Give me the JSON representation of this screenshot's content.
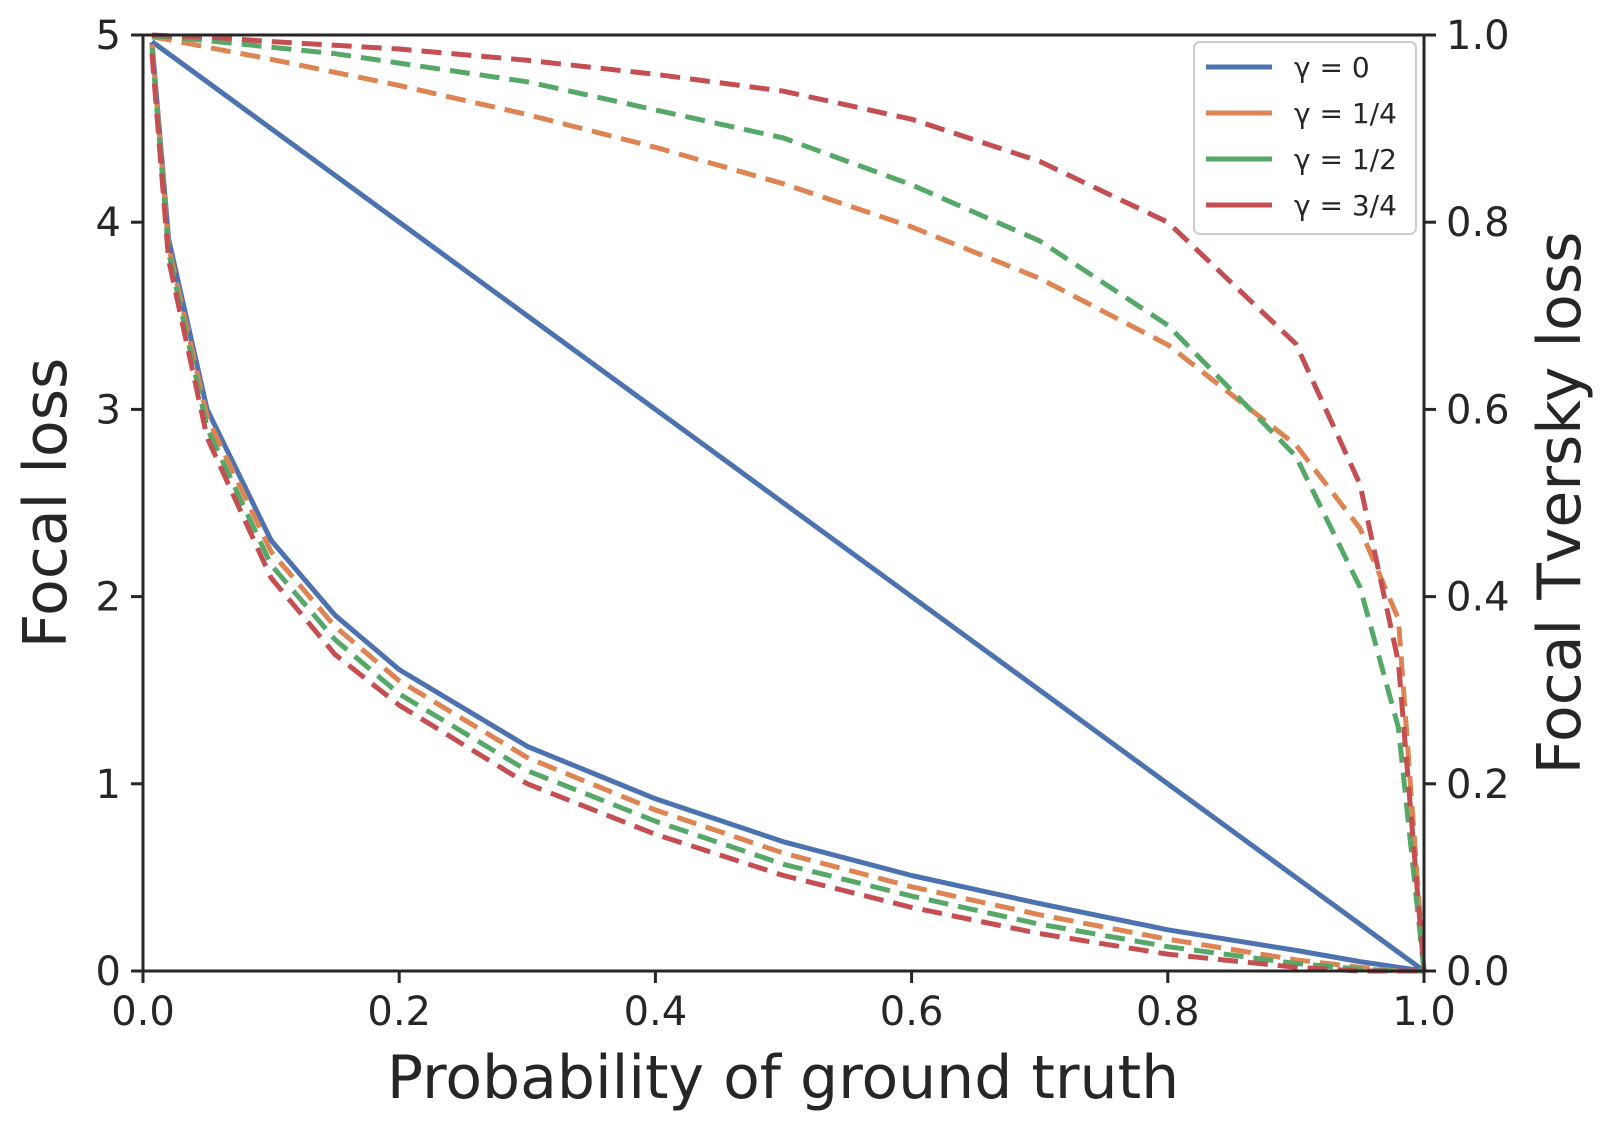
{
  "chart_data": {
    "type": "line",
    "xlabel": "Probability of ground truth",
    "ylabel_left": "Focal loss",
    "ylabel_right": "Focal Tversky loss",
    "xlim": [
      0.0,
      1.0
    ],
    "ylim_left": [
      0,
      5
    ],
    "ylim_right": [
      0.0,
      1.0
    ],
    "x_ticks": [
      "0.0",
      "0.2",
      "0.4",
      "0.6",
      "0.8",
      "1.0"
    ],
    "y_left_ticks": [
      "0",
      "1",
      "2",
      "3",
      "4",
      "5"
    ],
    "y_right_ticks": [
      "0.0",
      "0.2",
      "0.4",
      "0.6",
      "0.8",
      "1.0"
    ],
    "legend_position": "top-right",
    "x": [
      0.007,
      0.02,
      0.05,
      0.1,
      0.15,
      0.2,
      0.3,
      0.4,
      0.5,
      0.6,
      0.7,
      0.8,
      0.9,
      0.95,
      0.98,
      1.0
    ],
    "series": [
      {
        "name": "γ = 0",
        "color": "#4c72b0",
        "focal_loss": [
          4.96,
          3.91,
          3.0,
          2.3,
          1.9,
          1.61,
          1.2,
          0.92,
          0.69,
          0.51,
          0.36,
          0.22,
          0.11,
          0.05,
          0.02,
          0.0
        ],
        "focal_tversky_loss": [
          0.993,
          0.98,
          0.95,
          0.9,
          0.85,
          0.8,
          0.7,
          0.6,
          0.5,
          0.4,
          0.3,
          0.2,
          0.1,
          0.05,
          0.02,
          0.0
        ]
      },
      {
        "name": "γ = 1/4",
        "color": "#dd8452",
        "focal_loss": [
          4.95,
          3.87,
          2.96,
          2.24,
          1.84,
          1.55,
          1.14,
          0.86,
          0.63,
          0.45,
          0.3,
          0.17,
          0.06,
          0.02,
          0.0,
          0.0
        ],
        "focal_tversky_loss": [
          0.998,
          0.995,
          0.987,
          0.974,
          0.96,
          0.946,
          0.915,
          0.88,
          0.841,
          0.795,
          0.74,
          0.669,
          0.562,
          0.473,
          0.376,
          0.0
        ]
      },
      {
        "name": "γ = 1/2",
        "color": "#55a868",
        "focal_loss": [
          4.93,
          3.84,
          2.9,
          2.17,
          1.77,
          1.48,
          1.07,
          0.8,
          0.57,
          0.4,
          0.25,
          0.13,
          0.04,
          0.01,
          0.0,
          0.0
        ],
        "focal_tversky_loss": [
          0.999,
          0.998,
          0.994,
          0.987,
          0.98,
          0.97,
          0.95,
          0.92,
          0.89,
          0.84,
          0.78,
          0.69,
          0.55,
          0.41,
          0.26,
          0.0
        ]
      },
      {
        "name": "γ = 3/4",
        "color": "#c44e52",
        "focal_loss": [
          4.9,
          3.8,
          2.85,
          2.1,
          1.69,
          1.42,
          1.0,
          0.73,
          0.51,
          0.34,
          0.2,
          0.09,
          0.02,
          0.0,
          0.0,
          0.0
        ],
        "focal_tversky_loss": [
          1.0,
          0.999,
          0.998,
          0.993,
          0.989,
          0.985,
          0.973,
          0.958,
          0.94,
          0.91,
          0.865,
          0.8,
          0.67,
          0.52,
          0.33,
          0.0
        ]
      }
    ]
  }
}
